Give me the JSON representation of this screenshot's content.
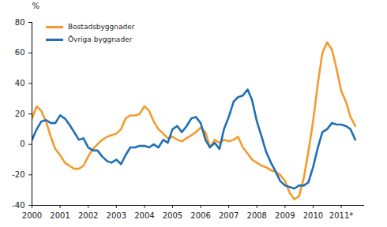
{
  "chart_data": {
    "type": "line",
    "ylabel": "%",
    "x": [
      2000,
      2000.17,
      2000.33,
      2000.5,
      2000.67,
      2000.83,
      2001,
      2001.17,
      2001.33,
      2001.5,
      2001.67,
      2001.83,
      2002,
      2002.17,
      2002.33,
      2002.5,
      2002.67,
      2002.83,
      2003,
      2003.17,
      2003.33,
      2003.5,
      2003.67,
      2003.83,
      2004,
      2004.17,
      2004.33,
      2004.5,
      2004.67,
      2004.83,
      2005,
      2005.17,
      2005.33,
      2005.5,
      2005.67,
      2005.83,
      2006,
      2006.17,
      2006.33,
      2006.5,
      2006.67,
      2006.83,
      2007,
      2007.17,
      2007.33,
      2007.5,
      2007.67,
      2007.83,
      2008,
      2008.17,
      2008.33,
      2008.5,
      2008.67,
      2008.83,
      2009,
      2009.17,
      2009.33,
      2009.5,
      2009.67,
      2009.83,
      2010,
      2010.17,
      2010.33,
      2010.5,
      2010.67,
      2010.83,
      2011,
      2011.17,
      2011.33,
      2011.5
    ],
    "series": [
      {
        "name": "Bostadsbyggnader",
        "color": "#F39B2E",
        "values": [
          17,
          25,
          22,
          15,
          5,
          -3,
          -7,
          -12,
          -14,
          -16,
          -16,
          -14,
          -8,
          -3,
          0,
          3,
          5,
          6,
          7,
          10,
          17,
          19,
          19,
          20,
          25,
          22,
          15,
          10,
          7,
          4,
          5,
          3,
          2,
          4,
          6,
          8,
          11,
          8,
          -2,
          3,
          1,
          3,
          2,
          3,
          5,
          -2,
          -6,
          -10,
          -12,
          -14,
          -15,
          -17,
          -18,
          -20,
          -24,
          -32,
          -36,
          -34,
          -22,
          -5,
          15,
          40,
          60,
          67,
          62,
          50,
          35,
          28,
          18,
          12
        ]
      },
      {
        "name": "Övriga byggnader",
        "color": "#1F6FB4",
        "values": [
          3,
          10,
          15,
          16,
          14,
          14,
          19,
          17,
          13,
          8,
          3,
          4,
          -2,
          -4,
          -4,
          -8,
          -11,
          -12,
          -10,
          -13,
          -7,
          -2,
          -2,
          -1,
          -1,
          -2,
          0,
          -2,
          3,
          1,
          10,
          12,
          8,
          12,
          17,
          18,
          14,
          3,
          -2,
          1,
          -3,
          10,
          18,
          28,
          31,
          32,
          36,
          29,
          15,
          5,
          -5,
          -12,
          -18,
          -24,
          -27,
          -28,
          -29,
          -27,
          -27,
          -25,
          -15,
          -2,
          8,
          10,
          14,
          13,
          13,
          12,
          10,
          3
        ]
      }
    ],
    "xlim": [
      2000,
      2011.8
    ],
    "ylim": [
      -40,
      80
    ],
    "xticks": [
      2000,
      2001,
      2002,
      2003,
      2004,
      2005,
      2006,
      2007,
      2008,
      2009,
      2010,
      {
        "value": 2011,
        "label": "2011*"
      }
    ],
    "yticks": [
      -40,
      -20,
      0,
      20,
      40,
      60,
      80
    ],
    "grid": false,
    "legend": "upper left"
  }
}
